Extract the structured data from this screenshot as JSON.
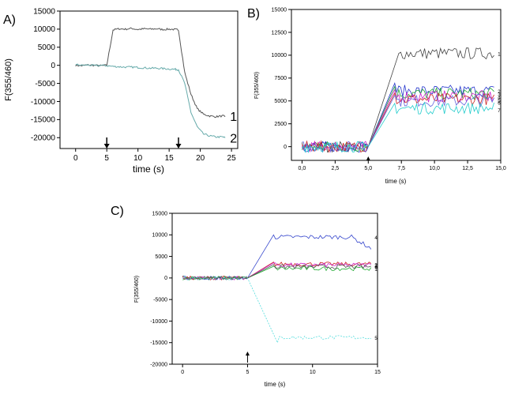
{
  "chart_data": [
    {
      "panel_label": "A)",
      "type": "line",
      "xlabel": "time (s)",
      "ylabel": "F(355/460)",
      "xlim": [
        -2.5,
        26
      ],
      "ylim": [
        -23000,
        15000
      ],
      "xticks": [
        0,
        5,
        10,
        15,
        20,
        25
      ],
      "yticks": [
        15000,
        10000,
        5000,
        0,
        -5000,
        -10000,
        -15000,
        -20000
      ],
      "annotations": [
        {
          "type": "arrow-down",
          "x": 5
        },
        {
          "type": "arrow-down",
          "x": 16.5
        }
      ],
      "series": [
        {
          "label": "1",
          "color": "#555555",
          "points": [
            [
              0,
              0
            ],
            [
              1,
              -100
            ],
            [
              2,
              100
            ],
            [
              3,
              0
            ],
            [
              4,
              -100
            ],
            [
              5,
              0
            ],
            [
              6,
              9800
            ],
            [
              7,
              10100
            ],
            [
              8,
              10000
            ],
            [
              9,
              10200
            ],
            [
              10,
              9900
            ],
            [
              11,
              10100
            ],
            [
              12,
              10000
            ],
            [
              13,
              10100
            ],
            [
              14,
              9900
            ],
            [
              15,
              10000
            ],
            [
              16,
              9900
            ],
            [
              16.5,
              9800
            ],
            [
              17.5,
              -2000
            ],
            [
              18.5,
              -8000
            ],
            [
              19.5,
              -12000
            ],
            [
              20.5,
              -13500
            ],
            [
              21.5,
              -14000
            ],
            [
              22.5,
              -14200
            ],
            [
              23.5,
              -14000
            ],
            [
              24,
              -14100
            ]
          ]
        },
        {
          "label": "2",
          "color": "#66aaaa",
          "points": [
            [
              0,
              200
            ],
            [
              1,
              0
            ],
            [
              2,
              100
            ],
            [
              3,
              -100
            ],
            [
              4,
              0
            ],
            [
              5,
              -100
            ],
            [
              6,
              -300
            ],
            [
              7,
              -400
            ],
            [
              8,
              -500
            ],
            [
              9,
              -500
            ],
            [
              10,
              -600
            ],
            [
              11,
              -700
            ],
            [
              12,
              -800
            ],
            [
              13,
              -800
            ],
            [
              14,
              -900
            ],
            [
              15,
              -1000
            ],
            [
              16,
              -1100
            ],
            [
              16.5,
              -1200
            ],
            [
              17.5,
              -5000
            ],
            [
              18.5,
              -13000
            ],
            [
              19.5,
              -17000
            ],
            [
              20.5,
              -19000
            ],
            [
              21.5,
              -19500
            ],
            [
              22.5,
              -19800
            ],
            [
              23.5,
              -19800
            ],
            [
              24,
              -20000
            ]
          ]
        }
      ]
    },
    {
      "panel_label": "B)",
      "type": "line",
      "xlabel": "time (s)",
      "ylabel": "F(355/460)",
      "xlim": [
        -0.8,
        15
      ],
      "ylim": [
        -1500,
        15000
      ],
      "xticks": [
        "0,0",
        "2,5",
        "5,0",
        "7,5",
        "10,0",
        "12,5",
        "15,0"
      ],
      "xtick_values": [
        0,
        2.5,
        5,
        7.5,
        10,
        12.5,
        15
      ],
      "yticks": [
        15000,
        12500,
        10000,
        7500,
        5000,
        2500,
        0
      ],
      "series": [
        {
          "label": "1",
          "color": "#444444",
          "plateau": 10200
        },
        {
          "label": "2",
          "color": "#2233cc",
          "plateau": 6100
        },
        {
          "label": "3",
          "color": "#22aa33",
          "plateau": 5800
        },
        {
          "label": "4",
          "color": "#cc22cc",
          "plateau": 5500
        },
        {
          "label": "5",
          "color": "#cc2222",
          "plateau": 5200
        },
        {
          "label": "6",
          "color": "#6666dd",
          "plateau": 5000
        },
        {
          "label": "7",
          "color": "#22cccc",
          "plateau": 4200
        }
      ]
    },
    {
      "panel_label": "C)",
      "type": "line",
      "xlabel": "time (s)",
      "ylabel": "F(355/460)",
      "xlim": [
        -0.8,
        15
      ],
      "ylim": [
        -20000,
        15000
      ],
      "xticks": [
        0,
        5,
        10,
        15
      ],
      "yticks": [
        15000,
        10000,
        5000,
        0,
        -5000,
        -10000,
        -15000,
        -20000
      ],
      "annotations": [
        {
          "type": "arrow-up",
          "x": 5
        }
      ],
      "series": [
        {
          "label": "4",
          "color": "#3344cc",
          "plateau": 9500
        },
        {
          "label": "2",
          "color": "#cc2222",
          "plateau": 3200
        },
        {
          "label": "3",
          "color": "#cc22cc",
          "plateau": 3000
        },
        {
          "label": "1",
          "color": "#22aa33",
          "plateau": 2200
        },
        {
          "label": "6",
          "color": "#555555",
          "plateau": 2600
        },
        {
          "label": "5",
          "color": "#55dddd",
          "plateau": -13800
        }
      ]
    }
  ]
}
